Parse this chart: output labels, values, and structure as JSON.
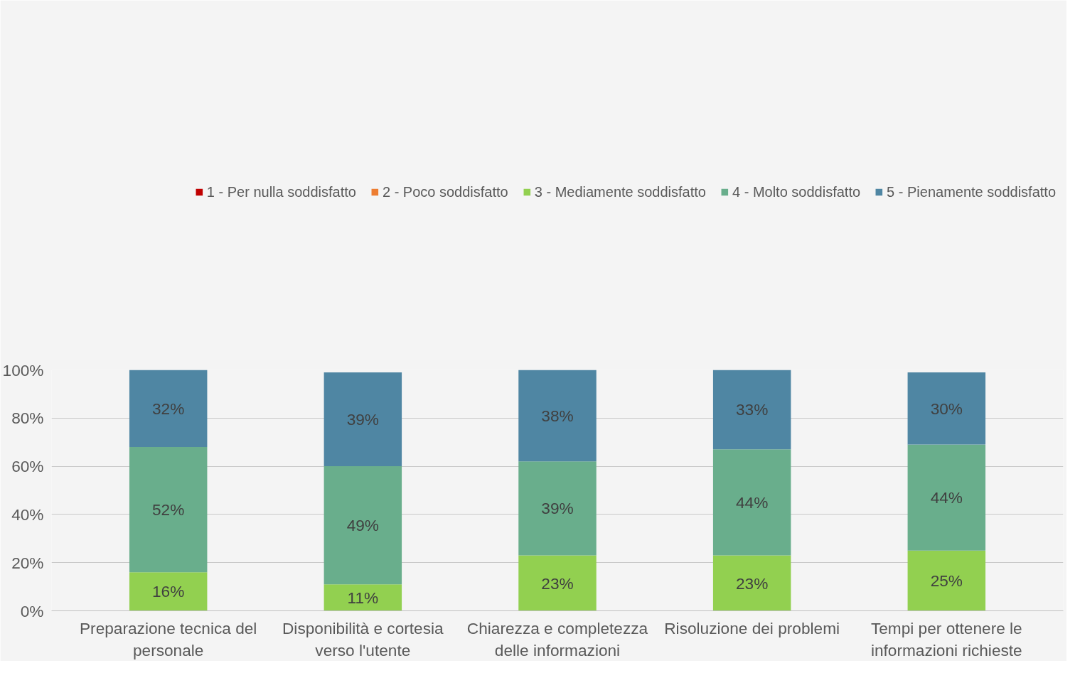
{
  "chart_data": {
    "type": "bar",
    "stacked": true,
    "categories": [
      "Preparazione tecnica del personale",
      "Disponibilità e cortesia verso l'utente",
      "Chiarezza e completezza delle informazioni",
      "Risoluzione dei problemi",
      "Tempi per ottenere le informazioni richieste"
    ],
    "series": [
      {
        "name": "1 - Per nulla soddisfatto",
        "color": "#c00000",
        "values": [
          0,
          0,
          0,
          0,
          0
        ],
        "value_labels": [
          null,
          null,
          null,
          null,
          null
        ]
      },
      {
        "name": "2 - Poco soddisfatto",
        "color": "#ed7d31",
        "values": [
          0,
          0,
          0,
          0,
          0
        ],
        "value_labels": [
          null,
          null,
          null,
          null,
          null
        ]
      },
      {
        "name": "3 - Mediamente soddisfatto",
        "color": "#92d050",
        "values": [
          16,
          11,
          23,
          23,
          25
        ],
        "value_labels": [
          "16%",
          "11%",
          "23%",
          "23%",
          "25%"
        ]
      },
      {
        "name": "4 - Molto soddisfatto",
        "color": "#69ae8c",
        "values": [
          52,
          49,
          39,
          44,
          44
        ],
        "value_labels": [
          "52%",
          "49%",
          "39%",
          "44%",
          "44%"
        ]
      },
      {
        "name": "5 - Pienamente soddisfatto",
        "color": "#4f86a3",
        "values": [
          32,
          39,
          38,
          33,
          30
        ],
        "value_labels": [
          "32%",
          "39%",
          "38%",
          "33%",
          "30%"
        ]
      }
    ],
    "ylim": [
      0,
      100
    ],
    "yticks": [
      {
        "value": 0,
        "label": "0%"
      },
      {
        "value": 20,
        "label": "20%"
      },
      {
        "value": 40,
        "label": "40%"
      },
      {
        "value": 60,
        "label": "60%"
      },
      {
        "value": 80,
        "label": "80%"
      },
      {
        "value": 100,
        "label": "100%"
      }
    ],
    "grid": "y",
    "legend": "top"
  }
}
